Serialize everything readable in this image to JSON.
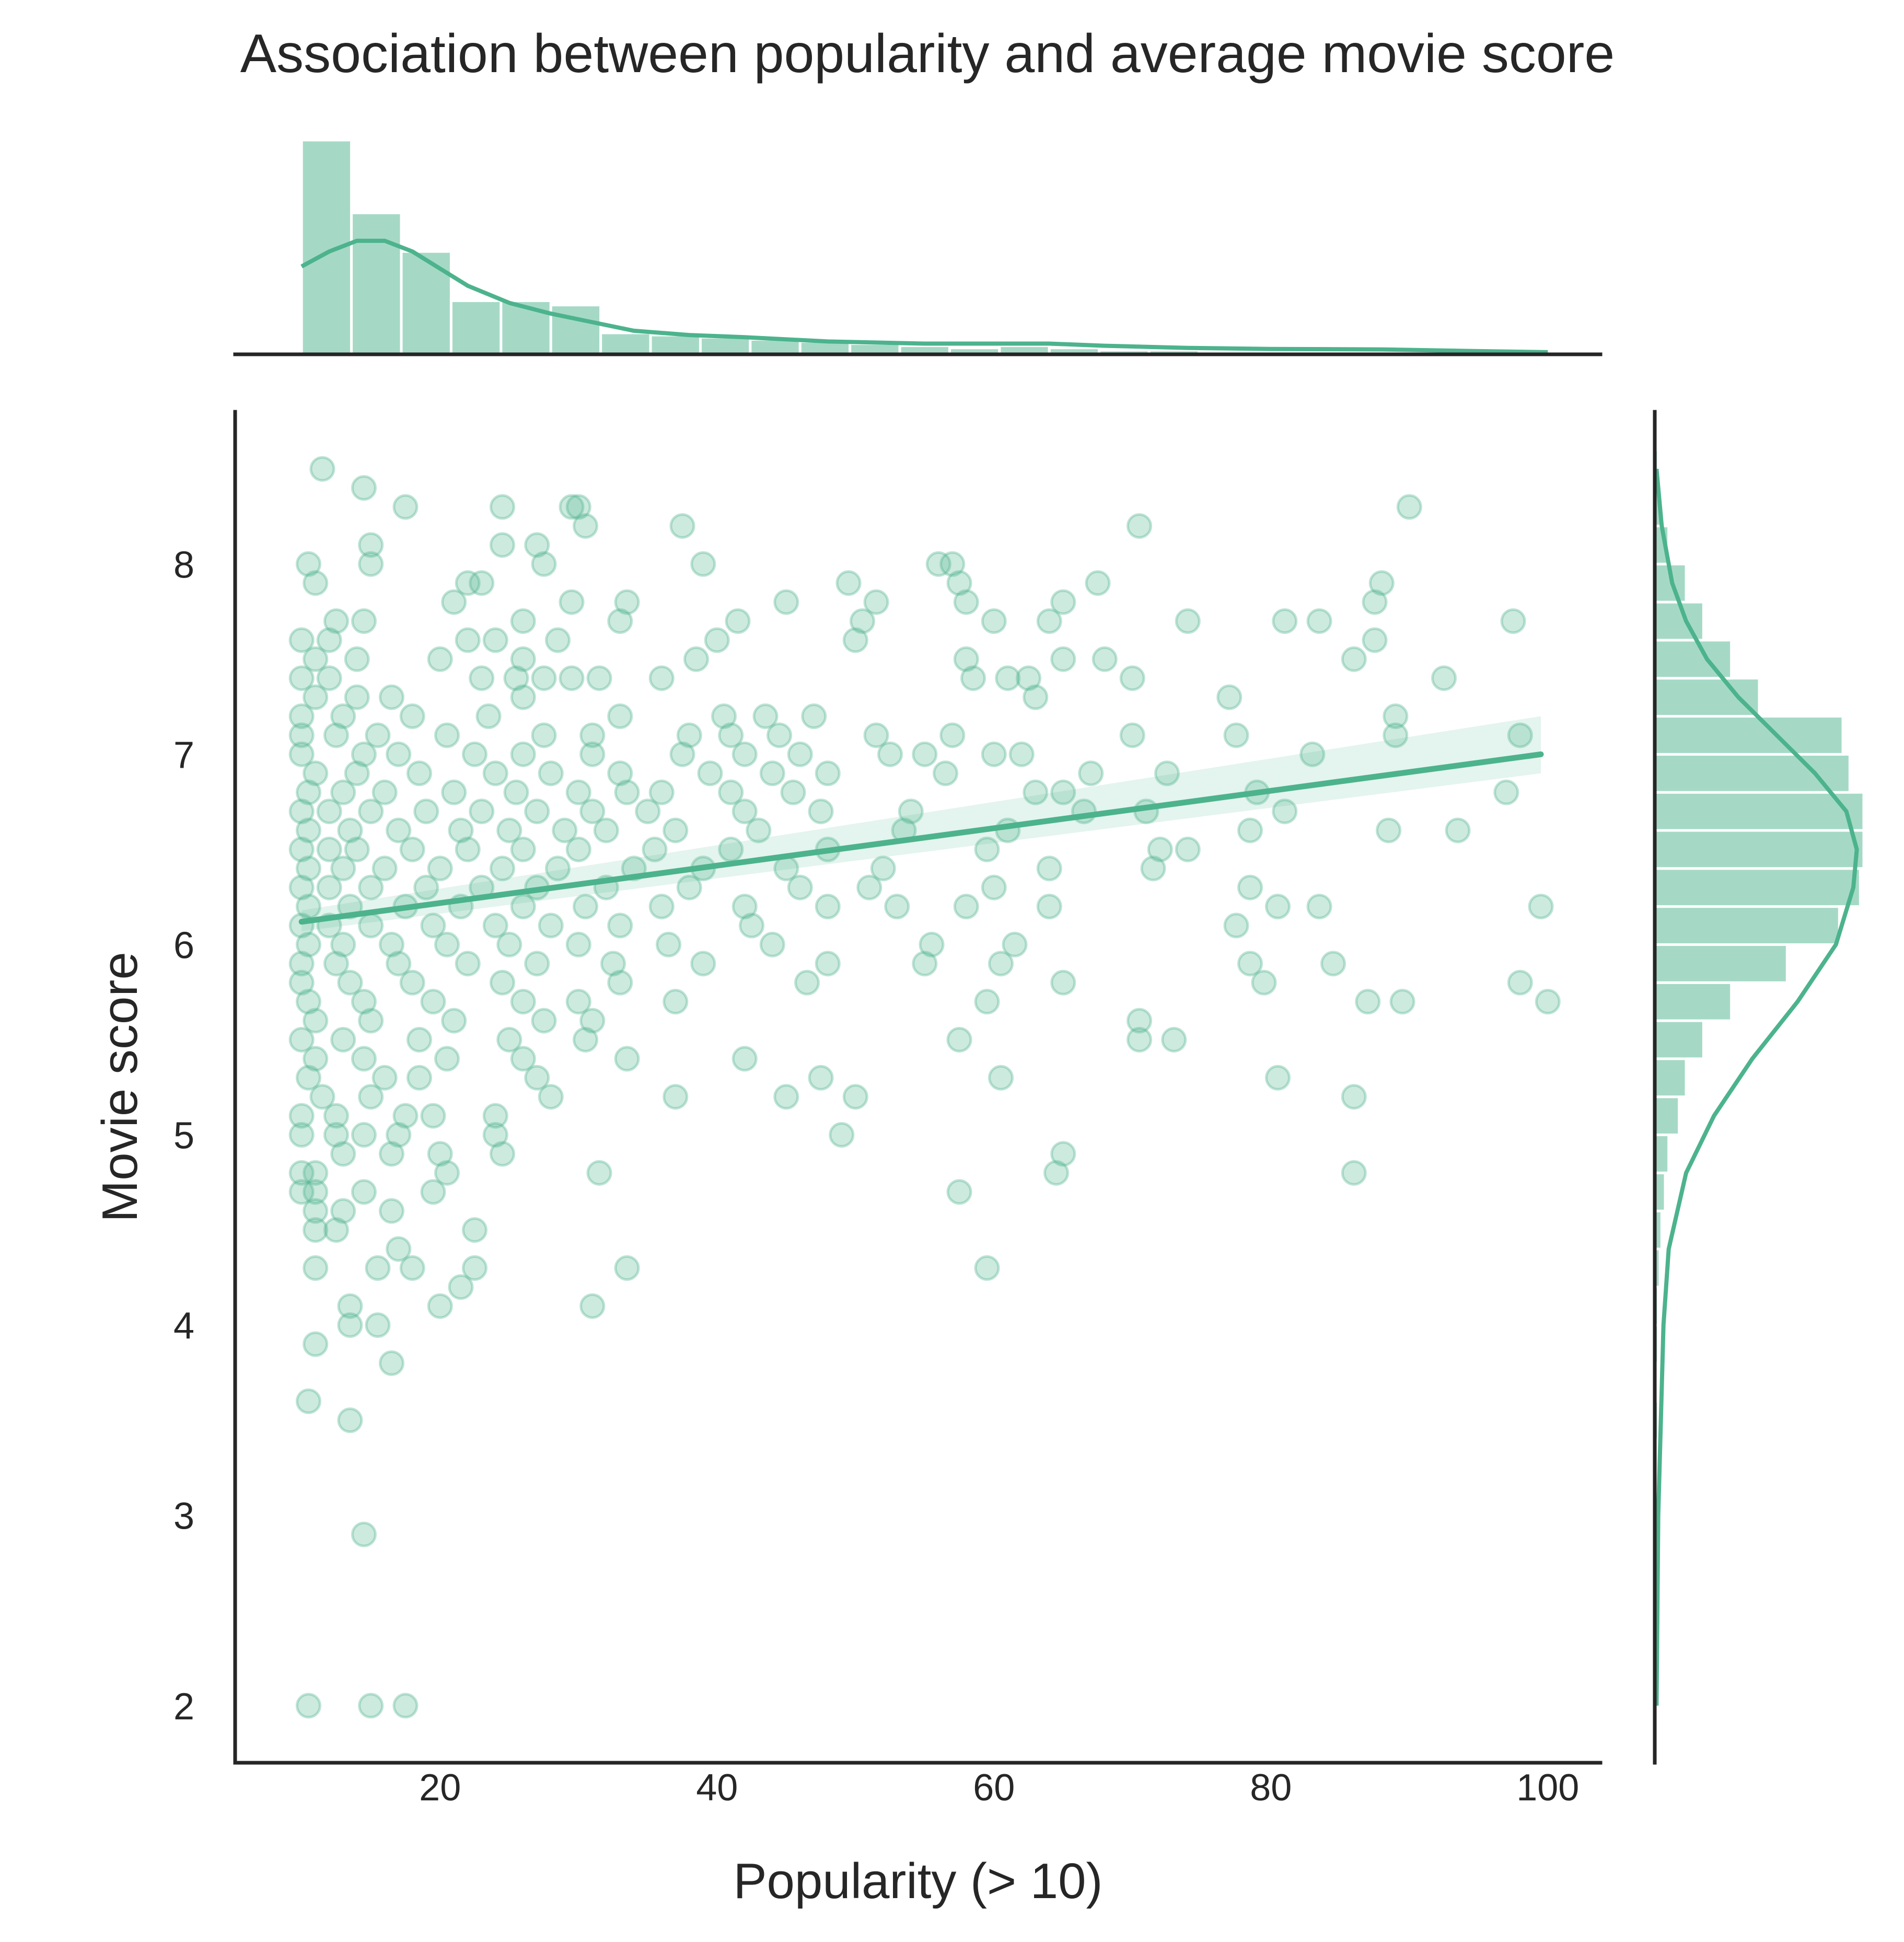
{
  "chart_data": {
    "type": "scatter",
    "title": "Association between popularity and average movie score",
    "xlabel": "Popularity (> 10)",
    "ylabel": "Movie score",
    "xlim": [
      5.2,
      103.8
    ],
    "ylim": [
      1.7,
      8.8
    ],
    "xticks": [
      "20",
      "40",
      "60",
      "80",
      "100"
    ],
    "yticks": [
      "2",
      "3",
      "4",
      "5",
      "6",
      "7",
      "8"
    ],
    "grid": false,
    "legend": "none",
    "colors": {
      "accent": "#4cb38d",
      "text": "#262626",
      "axis": "#262626",
      "background": "#ffffff"
    },
    "points": [
      [
        11.5,
        8.5
      ],
      [
        14.5,
        8.4
      ],
      [
        17.5,
        8.3
      ],
      [
        24.5,
        8.3
      ],
      [
        29.5,
        8.3
      ],
      [
        30,
        8.3
      ],
      [
        90,
        8.3
      ],
      [
        15,
        8.1
      ],
      [
        24.5,
        8.1
      ],
      [
        27,
        8.1
      ],
      [
        30.5,
        8.2
      ],
      [
        37.5,
        8.2
      ],
      [
        70.5,
        8.2
      ],
      [
        10.5,
        8
      ],
      [
        15,
        8
      ],
      [
        27.5,
        8
      ],
      [
        39,
        8
      ],
      [
        56,
        8
      ],
      [
        57,
        8
      ],
      [
        11,
        7.9
      ],
      [
        22,
        7.9
      ],
      [
        23,
        7.9
      ],
      [
        49.5,
        7.9
      ],
      [
        57.5,
        7.9
      ],
      [
        67.5,
        7.9
      ],
      [
        88,
        7.9
      ],
      [
        21,
        7.8
      ],
      [
        29.5,
        7.8
      ],
      [
        33.5,
        7.8
      ],
      [
        45,
        7.8
      ],
      [
        51.5,
        7.8
      ],
      [
        58,
        7.8
      ],
      [
        65,
        7.8
      ],
      [
        87.5,
        7.8
      ],
      [
        12.5,
        7.7
      ],
      [
        14.5,
        7.7
      ],
      [
        26,
        7.7
      ],
      [
        33,
        7.7
      ],
      [
        41.5,
        7.7
      ],
      [
        50.5,
        7.7
      ],
      [
        60,
        7.7
      ],
      [
        64,
        7.7
      ],
      [
        74,
        7.7
      ],
      [
        81,
        7.7
      ],
      [
        83.5,
        7.7
      ],
      [
        97.5,
        7.7
      ],
      [
        10,
        7.6
      ],
      [
        12,
        7.6
      ],
      [
        22,
        7.6
      ],
      [
        24,
        7.6
      ],
      [
        28.5,
        7.6
      ],
      [
        40,
        7.6
      ],
      [
        50,
        7.6
      ],
      [
        87.5,
        7.6
      ],
      [
        11,
        7.5
      ],
      [
        14,
        7.5
      ],
      [
        20,
        7.5
      ],
      [
        26,
        7.5
      ],
      [
        38.5,
        7.5
      ],
      [
        58,
        7.5
      ],
      [
        65,
        7.5
      ],
      [
        68,
        7.5
      ],
      [
        86,
        7.5
      ],
      [
        10,
        7.4
      ],
      [
        12,
        7.4
      ],
      [
        23,
        7.4
      ],
      [
        25.5,
        7.4
      ],
      [
        27.5,
        7.4
      ],
      [
        29.5,
        7.4
      ],
      [
        31.5,
        7.4
      ],
      [
        36,
        7.4
      ],
      [
        58.5,
        7.4
      ],
      [
        61,
        7.4
      ],
      [
        62.5,
        7.4
      ],
      [
        70,
        7.4
      ],
      [
        92.5,
        7.4
      ],
      [
        11,
        7.3
      ],
      [
        14,
        7.3
      ],
      [
        16.5,
        7.3
      ],
      [
        26,
        7.3
      ],
      [
        63,
        7.3
      ],
      [
        77,
        7.3
      ],
      [
        10,
        7.2
      ],
      [
        13,
        7.2
      ],
      [
        18,
        7.2
      ],
      [
        23.5,
        7.2
      ],
      [
        33,
        7.2
      ],
      [
        40.5,
        7.2
      ],
      [
        43.5,
        7.2
      ],
      [
        47,
        7.2
      ],
      [
        89,
        7.2
      ],
      [
        10,
        7.1
      ],
      [
        12.5,
        7.1
      ],
      [
        15.5,
        7.1
      ],
      [
        20.5,
        7.1
      ],
      [
        27.5,
        7.1
      ],
      [
        31,
        7.1
      ],
      [
        38,
        7.1
      ],
      [
        41,
        7.1
      ],
      [
        44.5,
        7.1
      ],
      [
        51.5,
        7.1
      ],
      [
        57,
        7.1
      ],
      [
        70,
        7.1
      ],
      [
        77.5,
        7.1
      ],
      [
        89,
        7.1
      ],
      [
        98,
        7.1
      ],
      [
        10,
        7
      ],
      [
        14.5,
        7
      ],
      [
        17,
        7
      ],
      [
        22.5,
        7
      ],
      [
        26,
        7
      ],
      [
        31,
        7
      ],
      [
        37.5,
        7
      ],
      [
        42,
        7
      ],
      [
        46,
        7
      ],
      [
        52.5,
        7
      ],
      [
        55,
        7
      ],
      [
        60,
        7
      ],
      [
        62,
        7
      ],
      [
        83,
        7
      ],
      [
        11,
        6.9
      ],
      [
        14,
        6.9
      ],
      [
        18.5,
        6.9
      ],
      [
        24,
        6.9
      ],
      [
        28,
        6.9
      ],
      [
        33,
        6.9
      ],
      [
        39.5,
        6.9
      ],
      [
        44,
        6.9
      ],
      [
        48,
        6.9
      ],
      [
        56.5,
        6.9
      ],
      [
        67,
        6.9
      ],
      [
        72.5,
        6.9
      ],
      [
        10.5,
        6.8
      ],
      [
        13,
        6.8
      ],
      [
        16,
        6.8
      ],
      [
        21,
        6.8
      ],
      [
        25.5,
        6.8
      ],
      [
        30,
        6.8
      ],
      [
        33.5,
        6.8
      ],
      [
        36,
        6.8
      ],
      [
        41,
        6.8
      ],
      [
        45.5,
        6.8
      ],
      [
        63,
        6.8
      ],
      [
        65,
        6.8
      ],
      [
        79,
        6.8
      ],
      [
        97,
        6.8
      ],
      [
        10,
        6.7
      ],
      [
        12,
        6.7
      ],
      [
        15,
        6.7
      ],
      [
        19,
        6.7
      ],
      [
        23,
        6.7
      ],
      [
        27,
        6.7
      ],
      [
        31,
        6.7
      ],
      [
        35,
        6.7
      ],
      [
        42,
        6.7
      ],
      [
        47.5,
        6.7
      ],
      [
        54,
        6.7
      ],
      [
        66.5,
        6.7
      ],
      [
        71,
        6.7
      ],
      [
        81,
        6.7
      ],
      [
        10.5,
        6.6
      ],
      [
        13.5,
        6.6
      ],
      [
        17,
        6.6
      ],
      [
        21.5,
        6.6
      ],
      [
        25,
        6.6
      ],
      [
        29,
        6.6
      ],
      [
        32,
        6.6
      ],
      [
        37,
        6.6
      ],
      [
        43,
        6.6
      ],
      [
        53.5,
        6.6
      ],
      [
        61,
        6.6
      ],
      [
        78.5,
        6.6
      ],
      [
        88.5,
        6.6
      ],
      [
        93.5,
        6.6
      ],
      [
        10,
        6.5
      ],
      [
        12,
        6.5
      ],
      [
        14,
        6.5
      ],
      [
        18,
        6.5
      ],
      [
        22,
        6.5
      ],
      [
        26,
        6.5
      ],
      [
        30,
        6.5
      ],
      [
        35.5,
        6.5
      ],
      [
        41,
        6.5
      ],
      [
        48,
        6.5
      ],
      [
        59.5,
        6.5
      ],
      [
        72,
        6.5
      ],
      [
        74,
        6.5
      ],
      [
        10.5,
        6.4
      ],
      [
        13,
        6.4
      ],
      [
        16,
        6.4
      ],
      [
        20,
        6.4
      ],
      [
        24.5,
        6.4
      ],
      [
        28.5,
        6.4
      ],
      [
        34,
        6.4
      ],
      [
        39,
        6.4
      ],
      [
        45,
        6.4
      ],
      [
        52,
        6.4
      ],
      [
        64,
        6.4
      ],
      [
        71.5,
        6.4
      ],
      [
        10,
        6.3
      ],
      [
        12,
        6.3
      ],
      [
        15,
        6.3
      ],
      [
        19,
        6.3
      ],
      [
        23,
        6.3
      ],
      [
        27,
        6.3
      ],
      [
        32,
        6.3
      ],
      [
        38,
        6.3
      ],
      [
        46,
        6.3
      ],
      [
        51,
        6.3
      ],
      [
        60,
        6.3
      ],
      [
        78.5,
        6.3
      ],
      [
        10.5,
        6.2
      ],
      [
        13.5,
        6.2
      ],
      [
        17.5,
        6.2
      ],
      [
        21.5,
        6.2
      ],
      [
        26,
        6.2
      ],
      [
        30.5,
        6.2
      ],
      [
        36,
        6.2
      ],
      [
        42,
        6.2
      ],
      [
        48,
        6.2
      ],
      [
        53,
        6.2
      ],
      [
        58,
        6.2
      ],
      [
        64,
        6.2
      ],
      [
        80.5,
        6.2
      ],
      [
        83.5,
        6.2
      ],
      [
        99.5,
        6.2
      ],
      [
        10,
        6.1
      ],
      [
        12,
        6.1
      ],
      [
        15,
        6.1
      ],
      [
        19.5,
        6.1
      ],
      [
        24,
        6.1
      ],
      [
        28,
        6.1
      ],
      [
        33,
        6.1
      ],
      [
        42.5,
        6.1
      ],
      [
        77.5,
        6.1
      ],
      [
        10.5,
        6
      ],
      [
        13,
        6
      ],
      [
        16.5,
        6
      ],
      [
        20.5,
        6
      ],
      [
        25,
        6
      ],
      [
        30,
        6
      ],
      [
        36.5,
        6
      ],
      [
        44,
        6
      ],
      [
        55.5,
        6
      ],
      [
        61.5,
        6
      ],
      [
        10,
        5.9
      ],
      [
        12.5,
        5.9
      ],
      [
        17,
        5.9
      ],
      [
        22,
        5.9
      ],
      [
        27,
        5.9
      ],
      [
        32.5,
        5.9
      ],
      [
        39,
        5.9
      ],
      [
        48,
        5.9
      ],
      [
        55,
        5.9
      ],
      [
        60.5,
        5.9
      ],
      [
        78.5,
        5.9
      ],
      [
        84.5,
        5.9
      ],
      [
        10,
        5.8
      ],
      [
        13.5,
        5.8
      ],
      [
        18,
        5.8
      ],
      [
        24.5,
        5.8
      ],
      [
        33,
        5.8
      ],
      [
        46.5,
        5.8
      ],
      [
        65,
        5.8
      ],
      [
        79.5,
        5.8
      ],
      [
        98,
        5.8
      ],
      [
        10.5,
        5.7
      ],
      [
        14.5,
        5.7
      ],
      [
        19.5,
        5.7
      ],
      [
        26,
        5.7
      ],
      [
        30,
        5.7
      ],
      [
        37,
        5.7
      ],
      [
        59.5,
        5.7
      ],
      [
        87,
        5.7
      ],
      [
        89.5,
        5.7
      ],
      [
        100,
        5.7
      ],
      [
        11,
        5.6
      ],
      [
        15,
        5.6
      ],
      [
        21,
        5.6
      ],
      [
        27.5,
        5.6
      ],
      [
        31,
        5.6
      ],
      [
        70.5,
        5.6
      ],
      [
        10,
        5.5
      ],
      [
        13,
        5.5
      ],
      [
        18.5,
        5.5
      ],
      [
        25,
        5.5
      ],
      [
        30.5,
        5.5
      ],
      [
        57.5,
        5.5
      ],
      [
        70.5,
        5.5
      ],
      [
        73,
        5.5
      ],
      [
        11,
        5.4
      ],
      [
        14.5,
        5.4
      ],
      [
        20.5,
        5.4
      ],
      [
        26,
        5.4
      ],
      [
        33.5,
        5.4
      ],
      [
        42,
        5.4
      ],
      [
        10.5,
        5.3
      ],
      [
        16,
        5.3
      ],
      [
        18.5,
        5.3
      ],
      [
        27,
        5.3
      ],
      [
        47.5,
        5.3
      ],
      [
        60.5,
        5.3
      ],
      [
        80.5,
        5.3
      ],
      [
        11.5,
        5.2
      ],
      [
        15,
        5.2
      ],
      [
        28,
        5.2
      ],
      [
        37,
        5.2
      ],
      [
        45,
        5.2
      ],
      [
        50,
        5.2
      ],
      [
        86,
        5.2
      ],
      [
        10,
        5.1
      ],
      [
        12.5,
        5.1
      ],
      [
        17.5,
        5.1
      ],
      [
        19.5,
        5.1
      ],
      [
        24,
        5.1
      ],
      [
        10,
        5
      ],
      [
        12.5,
        5
      ],
      [
        14.5,
        5
      ],
      [
        17,
        5
      ],
      [
        24,
        5
      ],
      [
        49,
        5
      ],
      [
        13,
        4.9
      ],
      [
        16.5,
        4.9
      ],
      [
        20,
        4.9
      ],
      [
        24.5,
        4.9
      ],
      [
        65,
        4.9
      ],
      [
        10,
        4.8
      ],
      [
        11,
        4.8
      ],
      [
        20.5,
        4.8
      ],
      [
        31.5,
        4.8
      ],
      [
        64.5,
        4.8
      ],
      [
        86,
        4.8
      ],
      [
        10,
        4.7
      ],
      [
        11,
        4.7
      ],
      [
        14.5,
        4.7
      ],
      [
        19.5,
        4.7
      ],
      [
        57.5,
        4.7
      ],
      [
        11,
        4.6
      ],
      [
        13,
        4.6
      ],
      [
        16.5,
        4.6
      ],
      [
        11,
        4.5
      ],
      [
        12.5,
        4.5
      ],
      [
        22.5,
        4.5
      ],
      [
        17,
        4.4
      ],
      [
        11,
        4.3
      ],
      [
        15.5,
        4.3
      ],
      [
        18,
        4.3
      ],
      [
        22.5,
        4.3
      ],
      [
        33.5,
        4.3
      ],
      [
        59.5,
        4.3
      ],
      [
        21.5,
        4.2
      ],
      [
        13.5,
        4.1
      ],
      [
        20,
        4.1
      ],
      [
        31,
        4.1
      ],
      [
        13.5,
        4
      ],
      [
        15.5,
        4
      ],
      [
        11,
        3.9
      ],
      [
        16.5,
        3.8
      ],
      [
        10.5,
        3.6
      ],
      [
        13.5,
        3.5
      ],
      [
        14.5,
        2.9
      ],
      [
        10.5,
        2
      ],
      [
        15,
        2
      ],
      [
        17.5,
        2
      ]
    ],
    "regression": {
      "x": [
        10,
        99.5
      ],
      "y": [
        6.12,
        7.0
      ],
      "ci_low": [
        6.07,
        6.9
      ],
      "ci_high": [
        6.18,
        7.2
      ]
    },
    "marginal_x": {
      "bin_edges": [
        10,
        13.6,
        17.2,
        20.8,
        24.4,
        28,
        31.6,
        35.2,
        38.8,
        42.4,
        46,
        49.6,
        53.2,
        56.8,
        60.4,
        64,
        67.6,
        71.2,
        74.8,
        78.4,
        82,
        85.6,
        89.2,
        92.8,
        96.4,
        100
      ],
      "counts": [
        100,
        66,
        48,
        25,
        25,
        23,
        10,
        9,
        8,
        7,
        6,
        5,
        4,
        3,
        4,
        3,
        2,
        2,
        1,
        1,
        1,
        1,
        1,
        0.5,
        0.5
      ],
      "kde": [
        [
          10,
          41
        ],
        [
          12,
          48
        ],
        [
          14,
          53
        ],
        [
          16,
          53
        ],
        [
          18,
          48
        ],
        [
          20,
          40
        ],
        [
          22,
          32
        ],
        [
          25,
          24
        ],
        [
          28,
          19
        ],
        [
          31,
          15
        ],
        [
          34,
          11
        ],
        [
          38,
          9
        ],
        [
          42,
          8
        ],
        [
          48,
          6
        ],
        [
          55,
          5
        ],
        [
          60,
          5
        ],
        [
          64,
          5
        ],
        [
          68,
          4
        ],
        [
          74,
          3
        ],
        [
          80,
          2.5
        ],
        [
          88,
          2.3
        ],
        [
          95,
          1.5
        ],
        [
          100,
          1
        ]
      ]
    },
    "marginal_y": {
      "bin_edges": [
        2,
        2.2,
        2.4,
        2.6,
        2.8,
        3,
        3.2,
        3.4,
        3.6,
        3.8,
        4,
        4.2,
        4.4,
        4.6,
        4.8,
        5,
        5.2,
        5.4,
        5.6,
        5.8,
        6,
        6.2,
        6.4,
        6.6,
        6.8,
        7,
        7.2,
        7.4,
        7.6,
        7.8,
        8,
        8.2,
        8.4,
        8.6
      ],
      "counts": [
        1,
        0,
        0,
        0,
        0.5,
        0,
        0,
        1,
        0.5,
        1,
        1,
        1.5,
        2,
        3,
        4,
        7,
        9,
        14,
        22,
        38,
        53,
        59,
        60,
        60,
        56,
        54,
        30,
        22,
        14,
        9,
        4,
        2,
        1
      ],
      "kde": [
        [
          2,
          0.5
        ],
        [
          3,
          1
        ],
        [
          4,
          2.5
        ],
        [
          4.4,
          4
        ],
        [
          4.8,
          9
        ],
        [
          5.1,
          17
        ],
        [
          5.4,
          28
        ],
        [
          5.7,
          41
        ],
        [
          6,
          52
        ],
        [
          6.3,
          57
        ],
        [
          6.5,
          58
        ],
        [
          6.7,
          55
        ],
        [
          6.9,
          46
        ],
        [
          7.1,
          35
        ],
        [
          7.3,
          24
        ],
        [
          7.5,
          15
        ],
        [
          7.7,
          9
        ],
        [
          7.9,
          5
        ],
        [
          8.2,
          2
        ],
        [
          8.5,
          0.5
        ]
      ]
    }
  }
}
